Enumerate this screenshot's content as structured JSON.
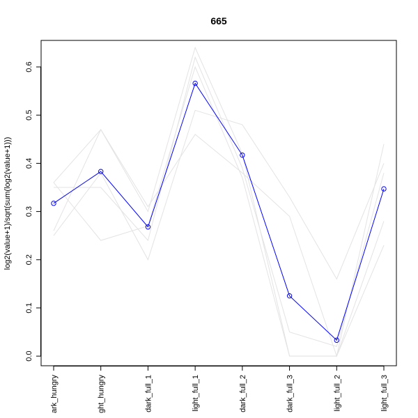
{
  "chart_data": {
    "type": "line",
    "title": "665",
    "xlabel": "",
    "ylabel": "log2(value+1)/sqrt(sum(log2(value+1)))",
    "categories": [
      "dark_hungry",
      "light_hungry",
      "dark_full_1",
      "light_full_1",
      "dark_full_2",
      "dark_full_3",
      "light_full_2",
      "light_full_3"
    ],
    "category_labels_visible": [
      "ark_hungry",
      "ght_hungry",
      "dark_full_1",
      "light_full_1",
      "dark_full_2",
      "dark_full_3",
      "light_full_2",
      "light_full_3"
    ],
    "ylim": [
      -0.02,
      0.655
    ],
    "yticks": [
      0.0,
      0.1,
      0.2,
      0.3,
      0.4,
      0.5,
      0.6
    ],
    "ytick_labels": [
      "0.0",
      "0.1",
      "0.2",
      "0.3",
      "0.4",
      "0.5",
      "0.6"
    ],
    "highlight_series": {
      "values": [
        0.317,
        0.383,
        0.268,
        0.566,
        0.417,
        0.125,
        0.033,
        0.347
      ],
      "color": "#0000ff",
      "marker": "open-circle"
    },
    "background_series": [
      {
        "values": [
          0.36,
          0.47,
          0.3,
          0.64,
          0.42,
          0.0,
          0.0,
          0.44
        ]
      },
      {
        "values": [
          0.25,
          0.38,
          0.2,
          0.51,
          0.48,
          0.33,
          0.16,
          0.4
        ]
      },
      {
        "values": [
          0.26,
          0.47,
          0.31,
          0.46,
          0.38,
          0.29,
          0.0,
          0.28
        ]
      },
      {
        "values": [
          0.36,
          0.24,
          0.27,
          0.6,
          0.37,
          0.0,
          0.0,
          0.23
        ]
      },
      {
        "values": [
          0.35,
          0.35,
          0.24,
          0.62,
          0.39,
          0.05,
          0.02,
          0.38
        ]
      }
    ],
    "background_color": "#e3e3e3",
    "grid": false,
    "legend": "none"
  }
}
